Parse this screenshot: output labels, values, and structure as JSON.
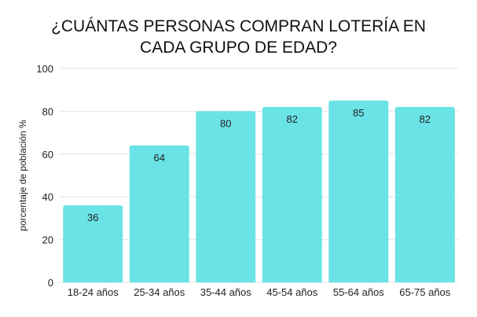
{
  "chart_data": {
    "type": "bar",
    "title": "¿CUÁNTAS PERSONAS COMPRAN LOTERÍA EN\nCADA GRUPO DE EDAD?",
    "xlabel": "",
    "ylabel": "porcentaje de población %",
    "categories": [
      "18-24 años",
      "25-34 años",
      "35-44 años",
      "45-54 años",
      "55-64 años",
      "65-75 años"
    ],
    "values": [
      36,
      64,
      80,
      82,
      85,
      82
    ],
    "ylim": [
      0,
      100
    ],
    "yticks": [
      0,
      20,
      40,
      60,
      80,
      100
    ],
    "grid": true,
    "legend": "none",
    "colors": {
      "bar": "#6ae3e6",
      "grid": "#e3e3e3",
      "text": "#222222"
    }
  }
}
